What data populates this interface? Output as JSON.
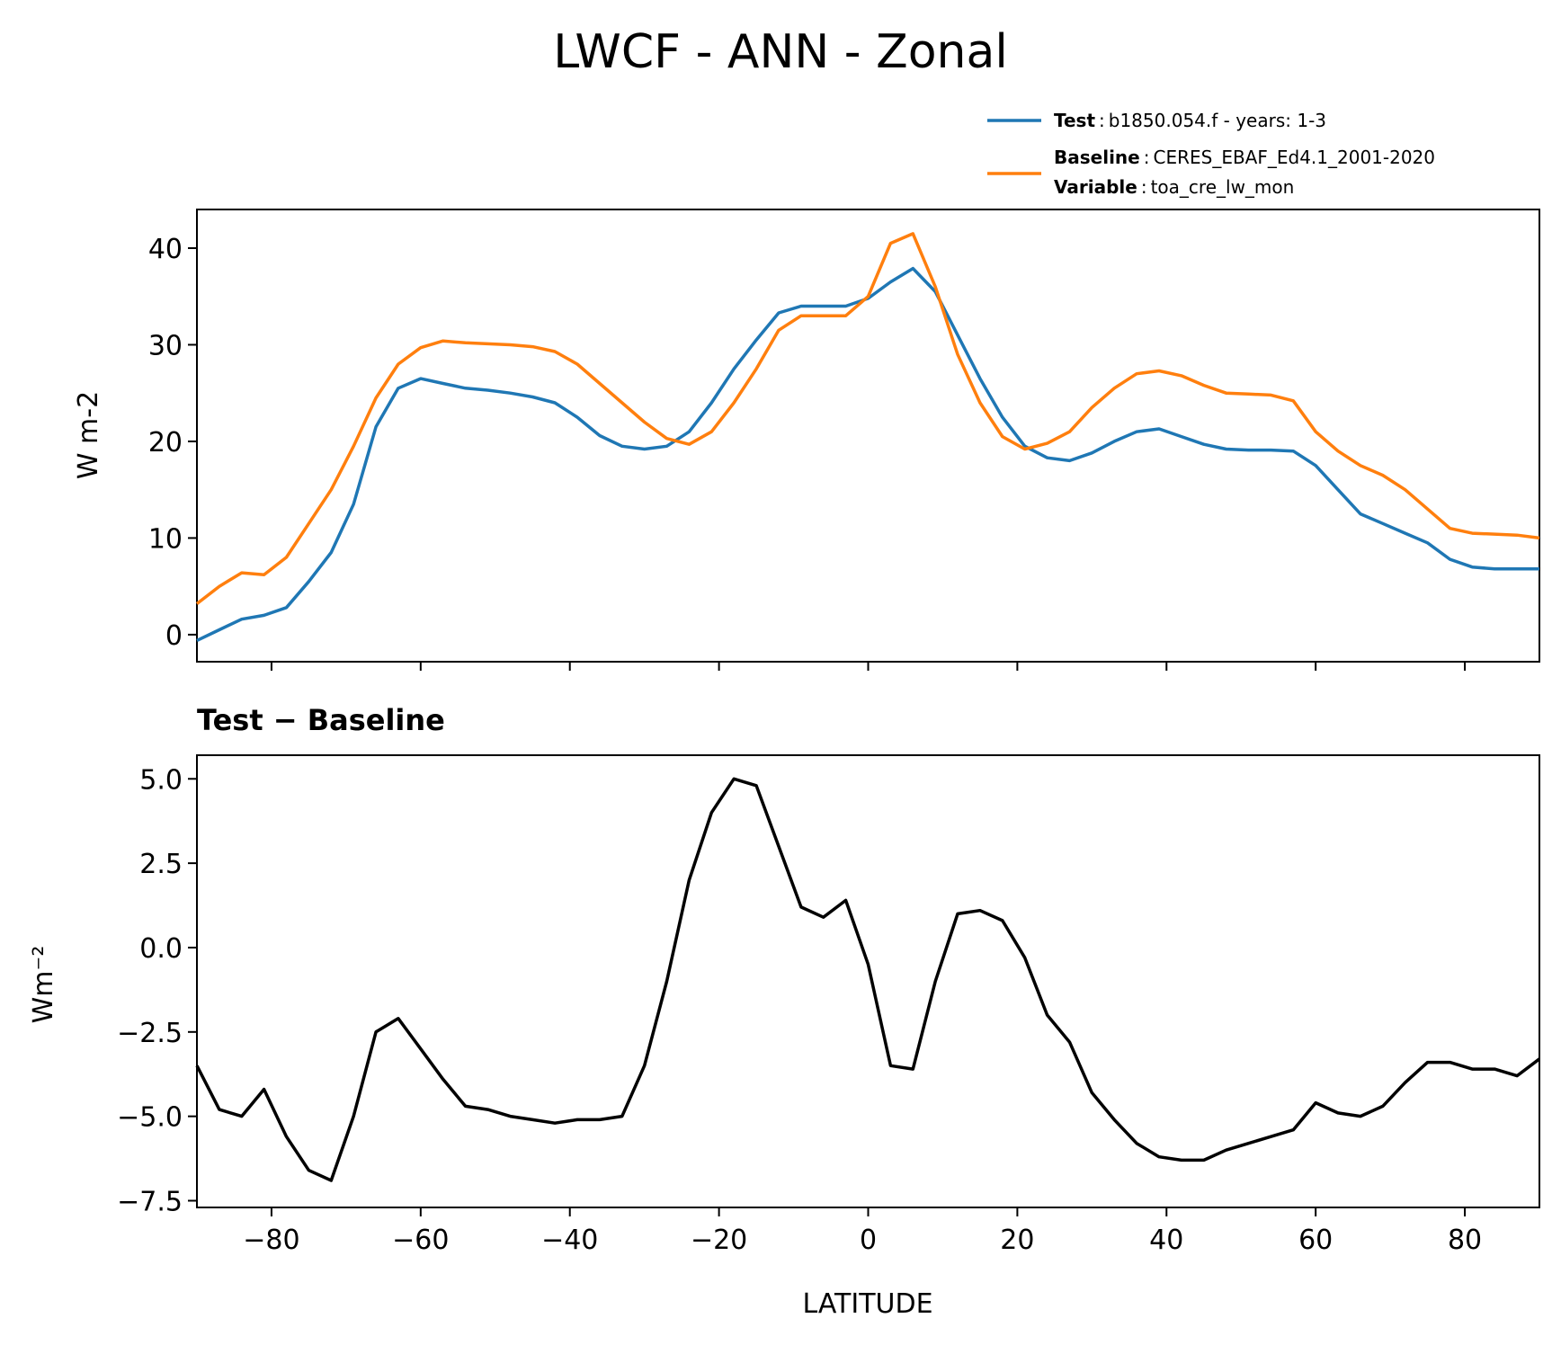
{
  "chart_data": [
    {
      "type": "line",
      "title": "LWCF - ANN - Zonal",
      "xlabel": "",
      "ylabel": "W m-2",
      "xlim": [
        -90,
        90
      ],
      "ylim": [
        -2.8,
        44
      ],
      "yticks": [
        0,
        10,
        20,
        30,
        40
      ],
      "ytick_labels": [
        "0",
        "10",
        "20",
        "30",
        "40"
      ],
      "legend": {
        "placement": "above-right",
        "entries": [
          {
            "key": "Test",
            "sep": ":",
            "value": "b1850.054.f - years: 1-3"
          },
          {
            "key": "Baseline",
            "sep": ":",
            "value": "CERES_EBAF_Ed4.1_2001-2020"
          },
          {
            "key": "Variable",
            "sep": ":",
            "value": "toa_cre_lw_mon"
          }
        ]
      },
      "x": [
        -90,
        -87,
        -84,
        -81,
        -78,
        -75,
        -72,
        -69,
        -66,
        -63,
        -60,
        -57,
        -54,
        -51,
        -48,
        -45,
        -42,
        -39,
        -36,
        -33,
        -30,
        -27,
        -24,
        -21,
        -18,
        -15,
        -12,
        -9,
        -6,
        -3,
        0,
        3,
        6,
        9,
        12,
        15,
        18,
        21,
        24,
        27,
        30,
        33,
        36,
        39,
        42,
        45,
        48,
        51,
        54,
        57,
        60,
        63,
        66,
        69,
        72,
        75,
        78,
        81,
        84,
        87,
        90
      ],
      "series": [
        {
          "name": "Test",
          "color": "#1f77b4",
          "values": [
            -0.6,
            0.5,
            1.6,
            2.0,
            2.8,
            5.5,
            8.5,
            13.5,
            21.5,
            25.5,
            26.5,
            26.0,
            25.5,
            25.3,
            25.0,
            24.6,
            24.0,
            22.5,
            20.6,
            19.5,
            19.2,
            19.5,
            21.0,
            24.0,
            27.5,
            30.5,
            33.3,
            34.0,
            34.0,
            34.0,
            34.8,
            36.5,
            37.9,
            35.5,
            31.0,
            26.5,
            22.5,
            19.5,
            18.3,
            18.0,
            18.8,
            20.0,
            21.0,
            21.3,
            20.5,
            19.7,
            19.2,
            19.1,
            19.1,
            19.0,
            17.5,
            15.0,
            12.5,
            11.5,
            10.5,
            9.5,
            7.8,
            7.0,
            6.8,
            6.8,
            6.8
          ]
        },
        {
          "name": "Baseline",
          "color": "#ff7f0e",
          "values": [
            3.2,
            5.0,
            6.4,
            6.2,
            8.0,
            11.5,
            15.0,
            19.5,
            24.5,
            28.0,
            29.7,
            30.4,
            30.2,
            30.1,
            30.0,
            29.8,
            29.3,
            28.0,
            26.0,
            24.0,
            22.0,
            20.3,
            19.7,
            21.0,
            24.0,
            27.5,
            31.5,
            33.0,
            33.0,
            33.0,
            35.0,
            40.5,
            41.5,
            36.0,
            29.0,
            24.0,
            20.5,
            19.2,
            19.8,
            21.0,
            23.5,
            25.5,
            27.0,
            27.3,
            26.8,
            25.8,
            25.0,
            24.9,
            24.8,
            24.2,
            21.0,
            19.0,
            17.5,
            16.5,
            15.0,
            13.0,
            11.0,
            10.5,
            10.4,
            10.3,
            10.0
          ]
        }
      ]
    },
    {
      "type": "line",
      "title": "Test − Baseline",
      "xlabel": "LATITUDE",
      "ylabel": "Wm⁻²",
      "xlim": [
        -90,
        90
      ],
      "ylim": [
        -7.7,
        5.7
      ],
      "xticks": [
        -80,
        -60,
        -40,
        -20,
        0,
        20,
        40,
        60,
        80
      ],
      "xtick_labels": [
        "−80",
        "−60",
        "−40",
        "−20",
        "0",
        "20",
        "40",
        "60",
        "80"
      ],
      "yticks": [
        5.0,
        2.5,
        0.0,
        -2.5,
        -5.0,
        -7.5
      ],
      "ytick_labels": [
        "5.0",
        "2.5",
        "0.0",
        "−2.5",
        "−5.0",
        "−7.5"
      ],
      "x": [
        -90,
        -87,
        -84,
        -81,
        -78,
        -75,
        -72,
        -69,
        -66,
        -63,
        -60,
        -57,
        -54,
        -51,
        -48,
        -45,
        -42,
        -39,
        -36,
        -33,
        -30,
        -27,
        -24,
        -21,
        -18,
        -15,
        -12,
        -9,
        -6,
        -3,
        0,
        3,
        6,
        9,
        12,
        15,
        18,
        21,
        24,
        27,
        30,
        33,
        36,
        39,
        42,
        45,
        48,
        51,
        54,
        57,
        60,
        63,
        66,
        69,
        72,
        75,
        78,
        81,
        84,
        87,
        90
      ],
      "series": [
        {
          "name": "Test − Baseline",
          "color": "#000000",
          "values": [
            -3.5,
            -4.8,
            -5.0,
            -4.2,
            -5.6,
            -6.6,
            -6.9,
            -5.0,
            -2.5,
            -2.1,
            -3.0,
            -3.9,
            -4.7,
            -4.8,
            -5.0,
            -5.1,
            -5.2,
            -5.1,
            -5.1,
            -5.0,
            -3.5,
            -1.0,
            2.0,
            4.0,
            5.0,
            4.8,
            3.0,
            1.2,
            0.9,
            1.4,
            -0.5,
            -3.5,
            -3.6,
            -1.0,
            1.0,
            1.1,
            0.8,
            -0.3,
            -2.0,
            -2.8,
            -4.3,
            -5.1,
            -5.8,
            -6.2,
            -6.3,
            -6.3,
            -6.0,
            -5.8,
            -5.6,
            -5.4,
            -4.6,
            -4.9,
            -5.0,
            -4.7,
            -4.0,
            -3.4,
            -3.4,
            -3.6,
            -3.6,
            -3.8,
            -3.3
          ]
        }
      ]
    }
  ]
}
